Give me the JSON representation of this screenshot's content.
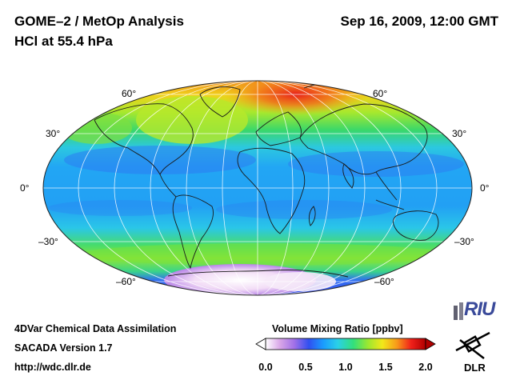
{
  "header": {
    "title": "GOME–2 / MetOp Analysis",
    "subtitle": "HCl at 55.4 hPa",
    "datetime": "Sep 16, 2009, 12:00 GMT"
  },
  "map": {
    "projection": "Hammer-Aitoff",
    "lat_labels": [
      "60°",
      "30°",
      "0°",
      "–30°",
      "–60°"
    ]
  },
  "colorbar": {
    "title": "Volume Mixing Ratio [ppbv]",
    "ticks": [
      "0.0",
      "0.5",
      "1.0",
      "1.5",
      "2.0"
    ],
    "range": [
      0.0,
      2.0
    ],
    "colors": [
      "#ffffff",
      "#d9a6e8",
      "#a070e8",
      "#3050f0",
      "#1a9cff",
      "#2ad0e8",
      "#33e07a",
      "#9ce830",
      "#f2e81a",
      "#f89a1a",
      "#f0201a",
      "#b00000"
    ]
  },
  "footer": {
    "line1": "4DVar Chemical Data Assimilation",
    "line2": "SACADA Version 1.7",
    "url": "http://wdc.dlr.de"
  },
  "logos": {
    "riu": "RIU",
    "dlr": "DLR"
  }
}
